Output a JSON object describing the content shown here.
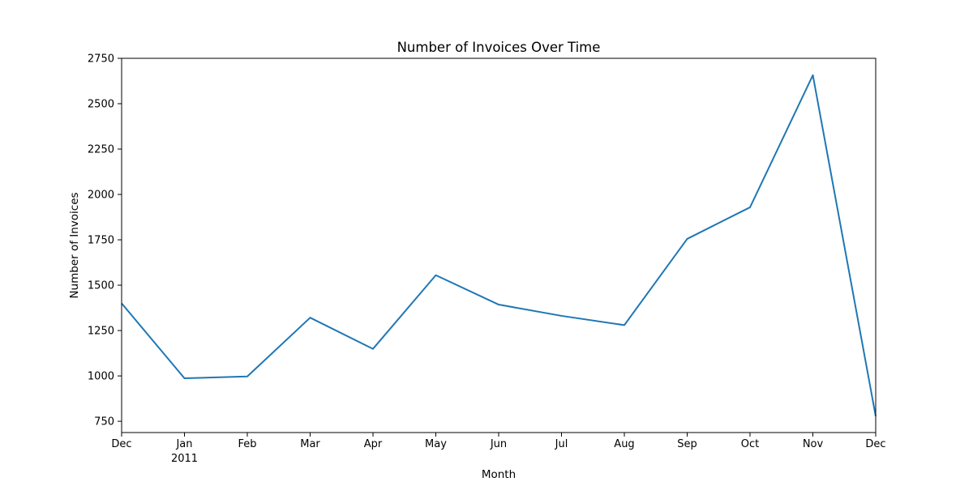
{
  "chart_data": {
    "type": "line",
    "title": "Number of Invoices Over Time",
    "xlabel": "Month",
    "ylabel": "Number of Invoices",
    "x": [
      "2010-12",
      "2011-01",
      "2011-02",
      "2011-03",
      "2011-04",
      "2011-05",
      "2011-06",
      "2011-07",
      "2011-08",
      "2011-09",
      "2011-10",
      "2011-11",
      "2011-12"
    ],
    "x_tick_labels": [
      "Dec",
      "Jan",
      "Feb",
      "Mar",
      "Apr",
      "May",
      "Jun",
      "Jul",
      "Aug",
      "Sep",
      "Oct",
      "Nov",
      "Dec"
    ],
    "x_tick_sublabels": [
      "",
      "2011",
      "",
      "",
      "",
      "",
      "",
      "",
      "",
      "",
      "",
      "",
      ""
    ],
    "y_ticks": [
      750,
      1000,
      1250,
      1500,
      1750,
      2000,
      2250,
      2500,
      2750
    ],
    "ylim": [
      688,
      2750
    ],
    "grid": false,
    "series": [
      {
        "color": "#1f77b4",
        "values": [
          1400,
          987,
          997,
          1321,
          1149,
          1555,
          1393,
          1331,
          1280,
          1755,
          1929,
          2657,
          778
        ]
      }
    ]
  }
}
